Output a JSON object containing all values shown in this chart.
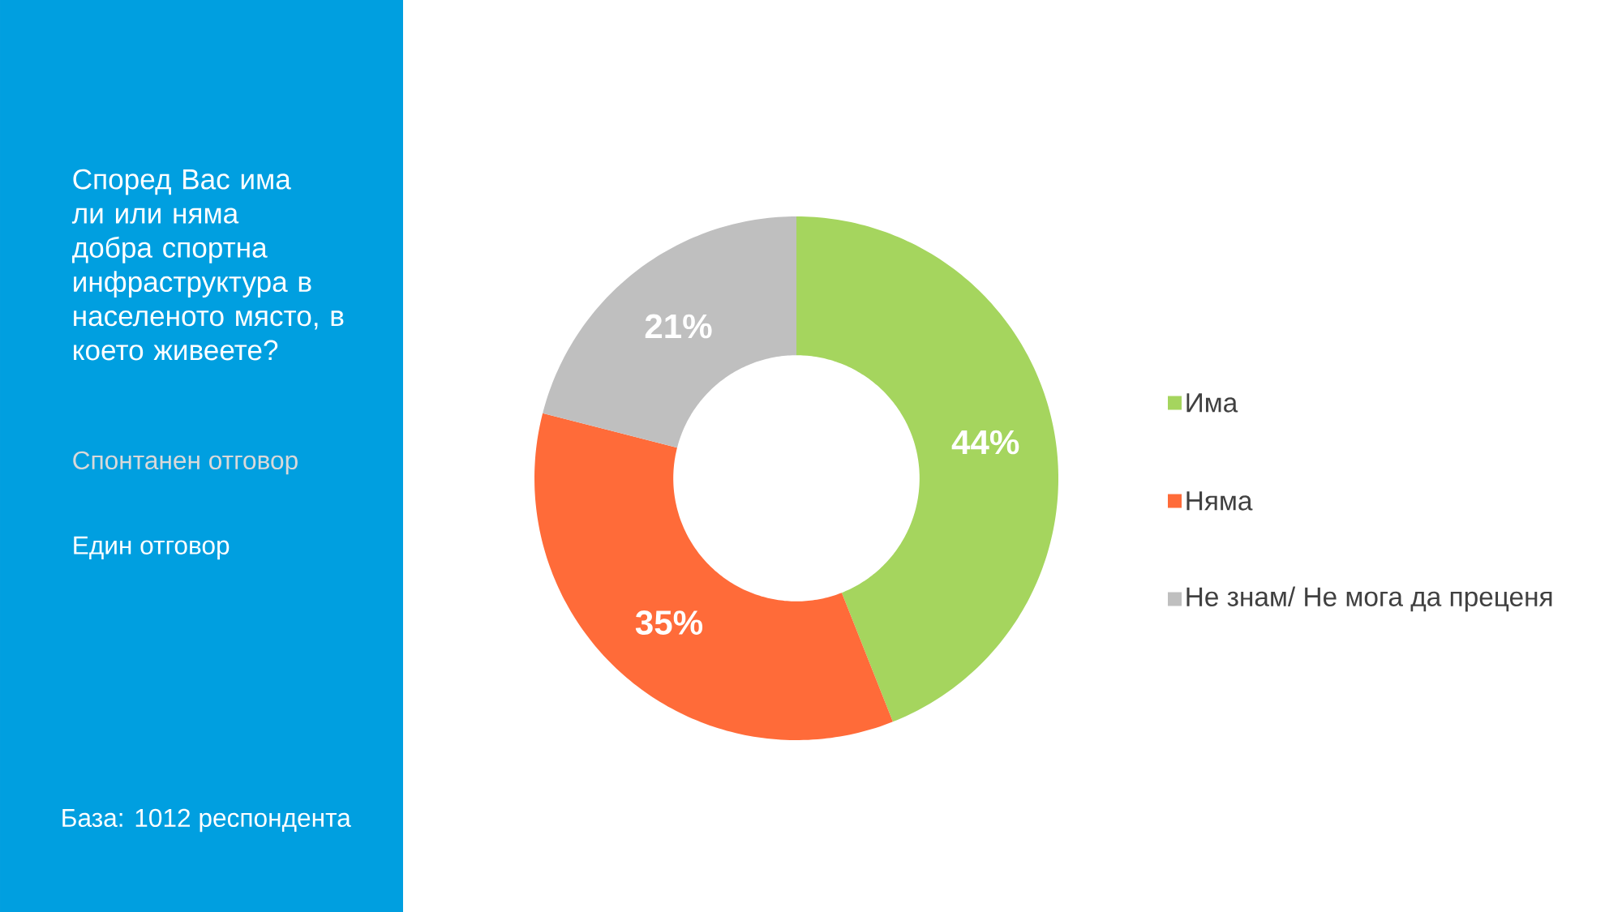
{
  "chart_data": {
    "type": "donut",
    "title": "Според Вас има ли или няма добра спортна инфраструктура в населеното място, в което живеете?",
    "subtitle": "Спонтанен отговор",
    "categories": [
      "Има",
      "Няма",
      "Не знам/ Не мога да преценя"
    ],
    "values": [
      44,
      35,
      21
    ],
    "colors": [
      "#a5d55e",
      "#ff6b39",
      "#bfbfbf"
    ],
    "value_labels": [
      "44%",
      "35%",
      "21%"
    ],
    "legend": "right",
    "annotations": [
      "Един отговор",
      "База: 1012 респондента"
    ]
  }
}
